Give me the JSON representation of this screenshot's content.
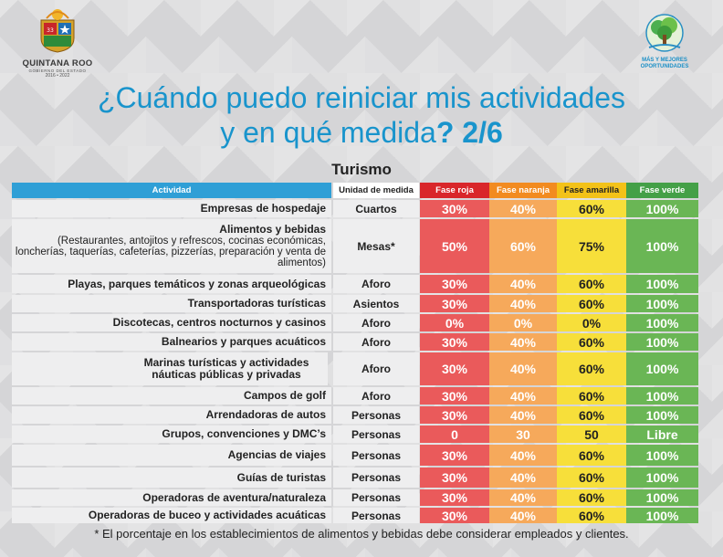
{
  "header": {
    "left_logo": {
      "name": "QUINTANA ROO",
      "subtitle": "GOBIERNO DEL ESTADO",
      "years": "2016 • 2022",
      "icon": "state-seal-icon"
    },
    "right_logo": {
      "icon": "tree-icon",
      "slogan_line1": "MÁS Y MEJORES",
      "slogan_line2": "OPORTUNIDADES"
    },
    "title_line1": "¿Cuándo puedo reiniciar mis actividades",
    "title_line2": "y en qué medida",
    "title_suffix": "? 2/6",
    "section": "Turismo"
  },
  "table": {
    "columns": {
      "activity": "Actividad",
      "unit": "Unidad de medida",
      "red": "Fase roja",
      "orange": "Fase naranja",
      "yellow": "Fase amarilla",
      "green": "Fase verde"
    },
    "rows": [
      {
        "activity": "Empresas de hospedaje",
        "unit": "Cuartos",
        "red": "30%",
        "orange": "40%",
        "yellow": "60%",
        "green": "100%"
      },
      {
        "activity": "Alimentos y bebidas",
        "detail": "(Restaurantes, antojitos y refrescos, cocinas económicas, loncherías, taquerías, cafeterías, pizzerías, preparación y venta de alimentos)",
        "unit": "Mesas*",
        "red": "50%",
        "orange": "60%",
        "yellow": "75%",
        "green": "100%"
      },
      {
        "activity": "Playas, parques temáticos y zonas arqueológicas",
        "unit": "Aforo",
        "red": "30%",
        "orange": "40%",
        "yellow": "60%",
        "green": "100%"
      },
      {
        "activity": "Transportadoras turísticas",
        "unit": "Asientos",
        "red": "30%",
        "orange": "40%",
        "yellow": "60%",
        "green": "100%"
      },
      {
        "activity": "Discotecas, centros nocturnos y casinos",
        "unit": "Aforo",
        "red": "0%",
        "orange": "0%",
        "yellow": "0%",
        "green": "100%"
      },
      {
        "activity": "Balnearios y parques acuáticos",
        "unit": "Aforo",
        "red": "30%",
        "orange": "40%",
        "yellow": "60%",
        "green": "100%"
      },
      {
        "activity": "Marinas turísticas y actividades náuticas públicas y privadas",
        "unit": "Aforo",
        "red": "30%",
        "orange": "40%",
        "yellow": "60%",
        "green": "100%"
      },
      {
        "activity": "Campos de golf",
        "unit": "Aforo",
        "red": "30%",
        "orange": "40%",
        "yellow": "60%",
        "green": "100%"
      },
      {
        "activity": "Arrendadoras de autos",
        "unit": "Personas",
        "red": "30%",
        "orange": "40%",
        "yellow": "60%",
        "green": "100%"
      },
      {
        "activity": "Grupos, convenciones y DMC’s",
        "unit": "Personas",
        "red": "0",
        "orange": "30",
        "yellow": "50",
        "green": "Libre"
      },
      {
        "activity": "Agencias de viajes",
        "unit": "Personas",
        "red": "30%",
        "orange": "40%",
        "yellow": "60%",
        "green": "100%"
      },
      {
        "activity": "Guías de turistas",
        "unit": "Personas",
        "red": "30%",
        "orange": "40%",
        "yellow": "60%",
        "green": "100%"
      },
      {
        "activity": "Operadoras de aventura/naturaleza",
        "unit": "Personas",
        "red": "30%",
        "orange": "40%",
        "yellow": "60%",
        "green": "100%"
      },
      {
        "activity": "Operadoras de buceo y actividades acuáticas",
        "unit": "Personas",
        "red": "30%",
        "orange": "40%",
        "yellow": "60%",
        "green": "100%"
      }
    ]
  },
  "footnote": "* El porcentaje en los establecimientos de alimentos y bebidas debe considerar empleados y clientes.",
  "colors": {
    "title": "#1994cc",
    "red": "#d9262a",
    "orange": "#f28b20",
    "yellow": "#f3c218",
    "green": "#44a047",
    "activity_header": "#2f9fd6"
  }
}
